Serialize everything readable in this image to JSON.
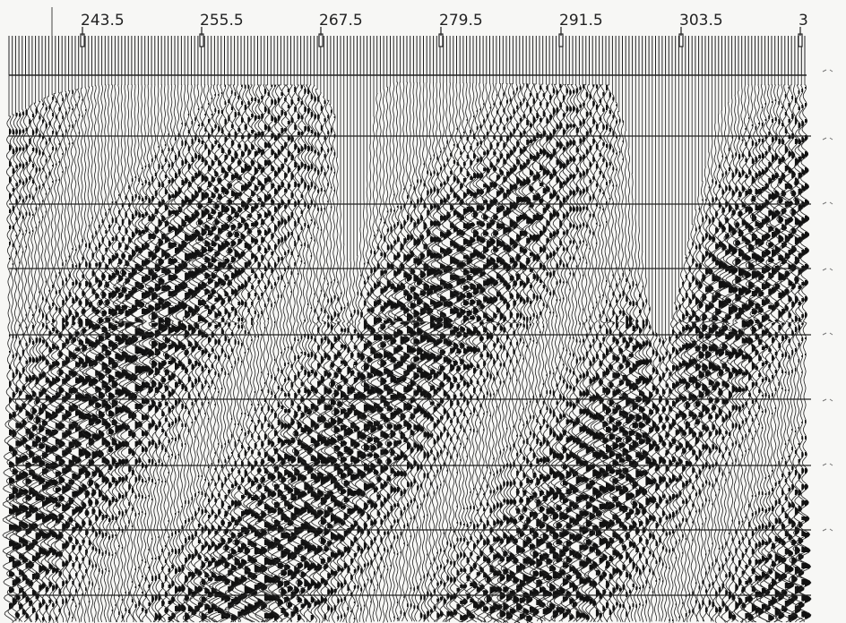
{
  "header": {
    "trace_labels": [
      "243.5",
      "255.5",
      "267.5",
      "279.5",
      "291.5",
      "303.5",
      "3"
    ]
  }
}
